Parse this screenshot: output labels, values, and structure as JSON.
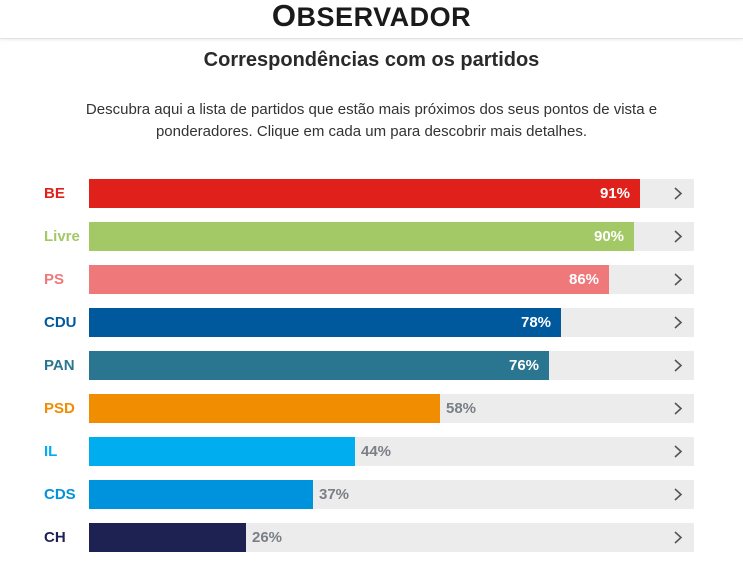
{
  "header": {
    "logo_first": "O",
    "logo_rest": "BSERVADOR"
  },
  "title": "Correspondências com os partidos",
  "subtitle": "Descubra aqui a lista de partidos que estão mais próximos dos seus pontos de vista e ponderadores. Clique em cada um para descobrir mais detalhes.",
  "parties": [
    {
      "name": "BE",
      "value": 91,
      "label": "91%",
      "color": "#e0201b"
    },
    {
      "name": "Livre",
      "value": 90,
      "label": "90%",
      "color": "#a3c966"
    },
    {
      "name": "PS",
      "value": 86,
      "label": "86%",
      "color": "#ef787a"
    },
    {
      "name": "CDU",
      "value": 78,
      "label": "78%",
      "color": "#00599d"
    },
    {
      "name": "PAN",
      "value": 76,
      "label": "76%",
      "color": "#2a7690"
    },
    {
      "name": "PSD",
      "value": 58,
      "label": "58%",
      "color": "#f18d00"
    },
    {
      "name": "IL",
      "value": 44,
      "label": "44%",
      "color": "#00aeef"
    },
    {
      "name": "CDS",
      "value": 37,
      "label": "37%",
      "color": "#0093dd"
    },
    {
      "name": "CH",
      "value": 26,
      "label": "26%",
      "color": "#1e2253"
    }
  ],
  "icons": {
    "row_arrow": "chevron-right-icon"
  }
}
